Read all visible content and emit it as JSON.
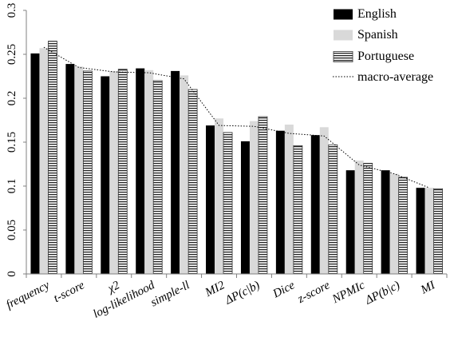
{
  "chart_data": {
    "type": "bar",
    "title": "",
    "xlabel": "",
    "ylabel": "",
    "ylim": [
      0,
      0.3
    ],
    "yticks": [
      "0",
      "0.05",
      "0.1",
      "0.15",
      "0.2",
      "0.25",
      "0.3"
    ],
    "grid": false,
    "legend_position": "top-right",
    "categories": [
      "frequency",
      "t-score",
      "χ2",
      "log-likelihood",
      "simple-ll",
      "MI2",
      "ΔP(c|b)",
      "Dice",
      "z-score",
      "NPMIc",
      "ΔP(b|c)",
      "MI"
    ],
    "series": [
      {
        "name": "English",
        "color": "#000000",
        "pattern": "solid",
        "values": [
          0.251,
          0.239,
          0.225,
          0.234,
          0.231,
          0.169,
          0.151,
          0.163,
          0.158,
          0.118,
          0.118,
          0.098
        ]
      },
      {
        "name": "Spanish",
        "color": "#d9d9d9",
        "pattern": "solid",
        "values": [
          0.257,
          0.236,
          0.231,
          0.232,
          0.226,
          0.177,
          0.174,
          0.17,
          0.167,
          0.129,
          0.114,
          0.098
        ]
      },
      {
        "name": "Portuguese",
        "color": "#ffffff",
        "pattern": "horizontal-stripes",
        "values": [
          0.265,
          0.231,
          0.233,
          0.22,
          0.21,
          0.161,
          0.179,
          0.146,
          0.147,
          0.126,
          0.11,
          0.097
        ]
      }
    ],
    "line_series": {
      "name": "macro-average",
      "style": "dotted",
      "values": [
        0.258,
        0.235,
        0.23,
        0.229,
        0.222,
        0.169,
        0.168,
        0.16,
        0.157,
        0.124,
        0.114,
        0.098
      ]
    }
  }
}
